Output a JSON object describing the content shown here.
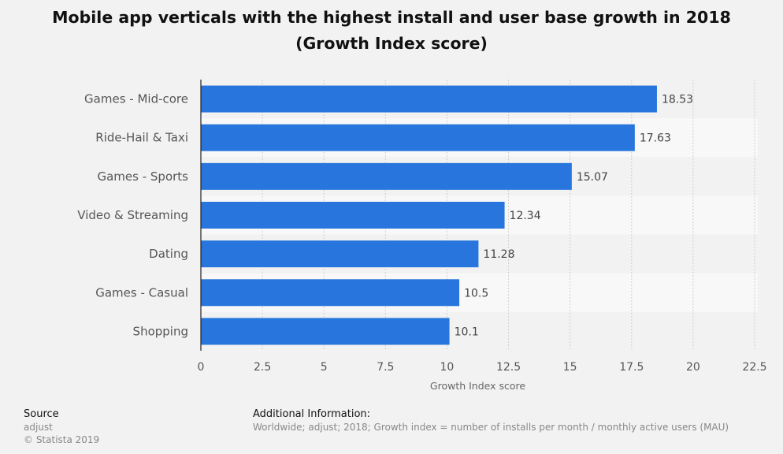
{
  "title": "Mobile app verticals with the highest install and user base growth in 2018 (Growth Index score)",
  "chart_data": {
    "type": "bar",
    "orientation": "horizontal",
    "categories": [
      "Games - Mid-core",
      "Ride-Hail & Taxi",
      "Games - Sports",
      "Video & Streaming",
      "Dating",
      "Games - Casual",
      "Shopping"
    ],
    "values": [
      18.53,
      17.63,
      15.07,
      12.34,
      11.28,
      10.5,
      10.1
    ],
    "value_labels": [
      "18.53",
      "17.63",
      "15.07",
      "12.34",
      "11.28",
      "10.5",
      "10.1"
    ],
    "xlabel": "Growth Index score",
    "ylabel": "",
    "xlim": [
      0,
      22.5
    ],
    "ticks": [
      0,
      2.5,
      5,
      7.5,
      10,
      12.5,
      15,
      17.5,
      20,
      22.5
    ],
    "tick_labels": [
      "0",
      "2.5",
      "5",
      "7.5",
      "10",
      "12.5",
      "15",
      "17.5",
      "20",
      "22.5"
    ],
    "grid": true,
    "bar_color": "#2876dd",
    "legend": "none"
  },
  "source": {
    "heading": "Source",
    "lines": [
      "adjust",
      "© Statista 2019"
    ]
  },
  "additional_info": {
    "heading": "Additional Information:",
    "text": "Worldwide; adjust; 2018; Growth index = number of installs per month / monthly active users (MAU)"
  }
}
